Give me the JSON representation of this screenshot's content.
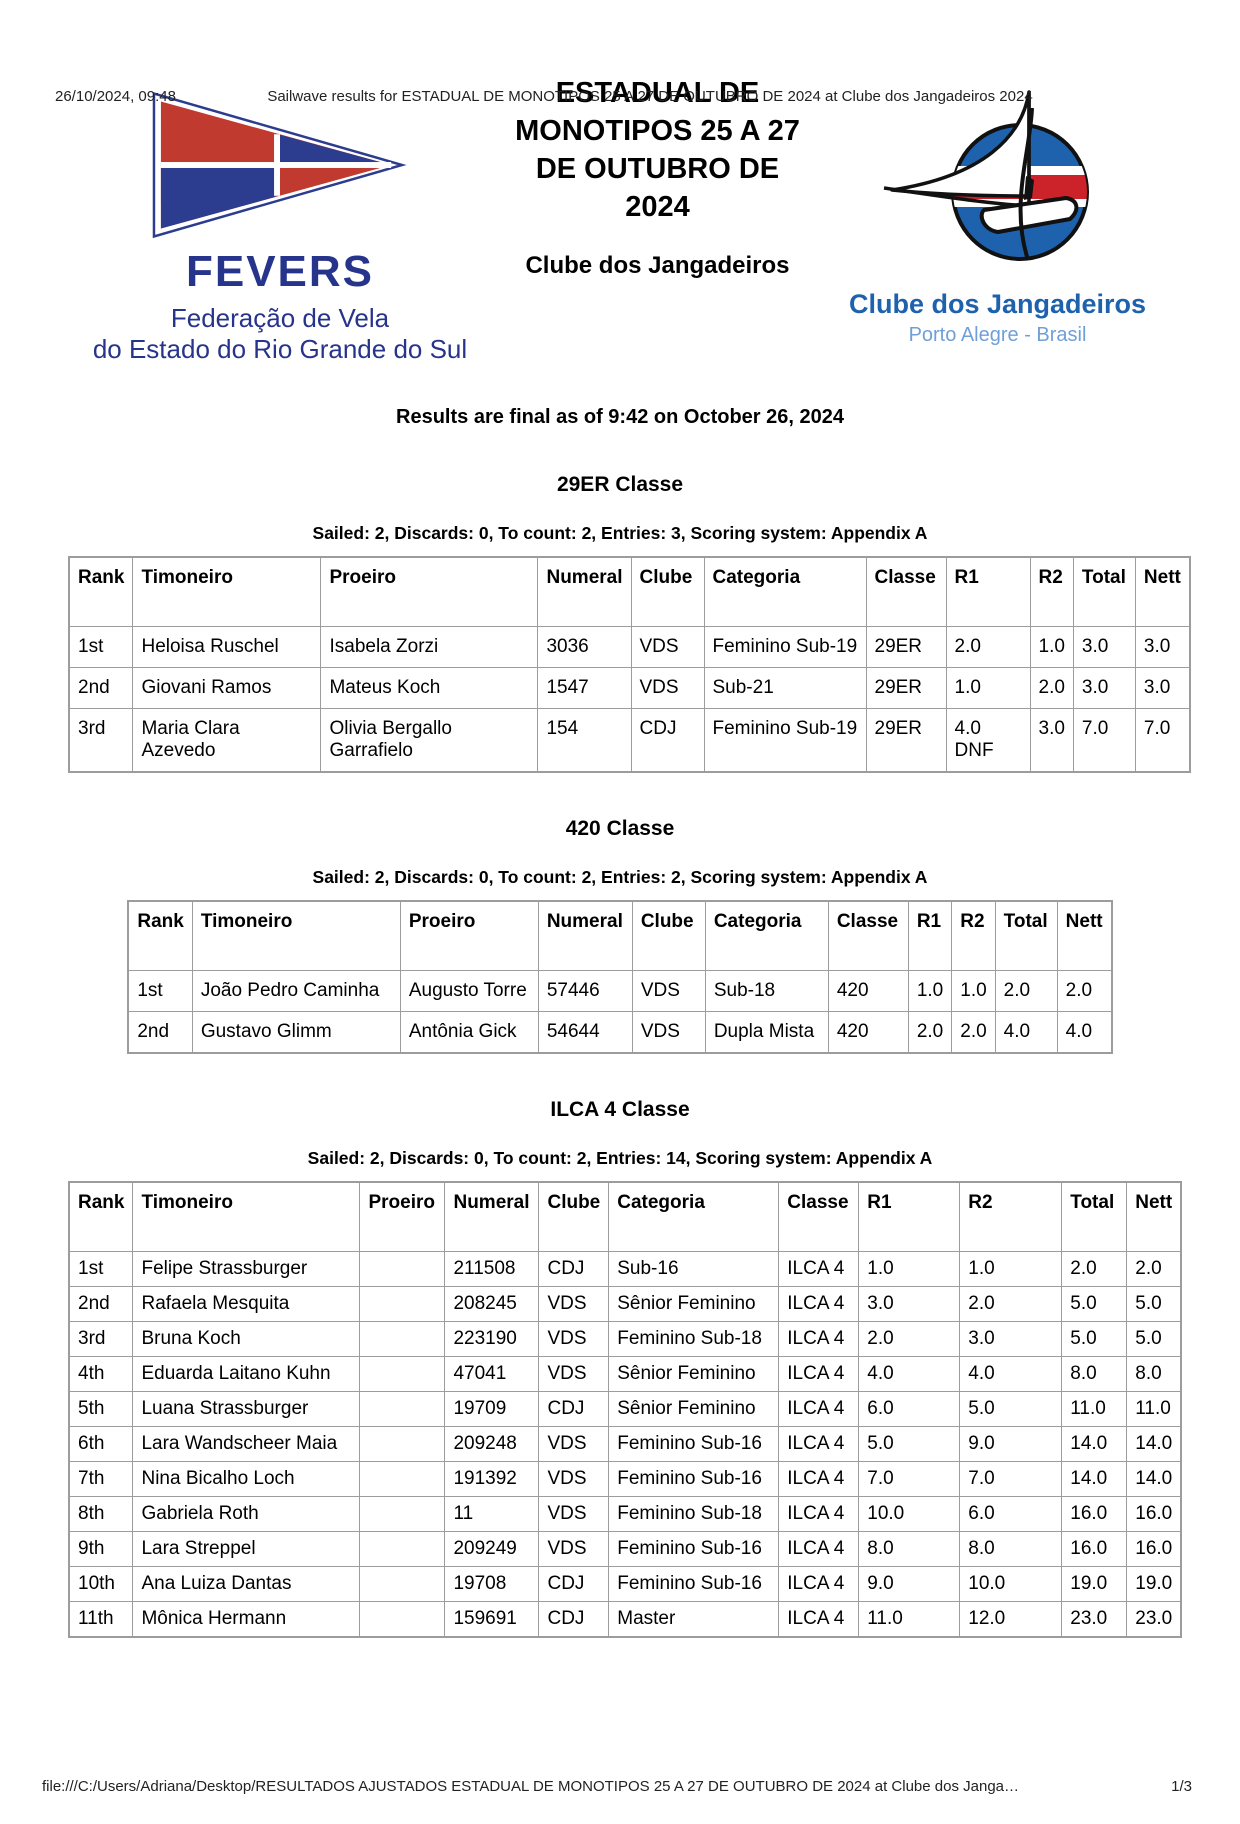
{
  "print_header": {
    "datetime": "26/10/2024, 09:48",
    "title": "Sailwave results for ESTADUAL DE MONOTIPOS 25 A 27 DE OUTUBRO DE 2024 at Clube dos Jangadeiros 2024"
  },
  "banner": {
    "fevers": {
      "flag_icon": "fevers-pennant-flag-icon",
      "name": "FEVERS",
      "subtitle_line1": "Federação de Vela",
      "subtitle_line2": "do Estado do Rio Grande do Sul",
      "colors": {
        "navy": "#27348b",
        "flag_red": "#c03a2f",
        "flag_blue": "#2c3c8f"
      }
    },
    "event_title": "ESTADUAL DE MONOTIPOS 25 A 27 DE OUTUBRO DE 2024",
    "event_venue": "Clube dos Jangadeiros",
    "cdj": {
      "logo_icon": "jangada-sailboat-icon",
      "name": "Clube dos Jangadeiros",
      "subtitle": "Porto Alegre - Brasil",
      "colors": {
        "blue": "#1e62ae",
        "light_blue": "#6f9fd8",
        "stripe_red": "#cc2229"
      }
    }
  },
  "results_note": "Results are final as of 9:42 on October 26, 2024",
  "sections": [
    {
      "title": "29ER Classe",
      "info": "Sailed: 2, Discards: 0, To count: 2, Entries: 3, Scoring system: Appendix A",
      "columns": [
        "Rank",
        "Timoneiro",
        "Proeiro",
        "Numeral",
        "Clube",
        "Categoria",
        "Classe",
        "R1",
        "R2",
        "Total",
        "Nett"
      ],
      "rows": [
        [
          "1st",
          "Heloisa Ruschel",
          "Isabela Zorzi",
          "3036",
          "VDS",
          "Feminino Sub-19",
          "29ER",
          "2.0",
          "1.0",
          "3.0",
          "3.0"
        ],
        [
          "2nd",
          "Giovani Ramos",
          "Mateus Koch",
          "1547",
          "VDS",
          "Sub-21",
          "29ER",
          "1.0",
          "2.0",
          "3.0",
          "3.0"
        ],
        [
          "3rd",
          "Maria Clara Azevedo",
          "Olivia Bergallo Garrafielo",
          "154",
          "CDJ",
          "Feminino Sub-19",
          "29ER",
          "4.0\nDNF",
          "3.0",
          "7.0",
          "7.0"
        ]
      ]
    },
    {
      "title": "420 Classe",
      "info": "Sailed: 2, Discards: 0, To count: 2, Entries: 2, Scoring system: Appendix A",
      "columns": [
        "Rank",
        "Timoneiro",
        "Proeiro",
        "Numeral",
        "Clube",
        "Categoria",
        "Classe",
        "R1",
        "R2",
        "Total",
        "Nett"
      ],
      "rows": [
        [
          "1st",
          "João Pedro Caminha",
          "Augusto Torre",
          "57446",
          "VDS",
          "Sub-18",
          "420",
          "1.0",
          "1.0",
          "2.0",
          "2.0"
        ],
        [
          "2nd",
          "Gustavo Glimm",
          "Antônia Gick",
          "54644",
          "VDS",
          "Dupla Mista",
          "420",
          "2.0",
          "2.0",
          "4.0",
          "4.0"
        ]
      ]
    },
    {
      "title": "ILCA 4 Classe",
      "info": "Sailed: 2, Discards: 0, To count: 2, Entries: 14, Scoring system: Appendix A",
      "columns": [
        "Rank",
        "Timoneiro",
        "Proeiro",
        "Numeral",
        "Clube",
        "Categoria",
        "Classe",
        "R1",
        "R2",
        "Total",
        "Nett"
      ],
      "rows": [
        [
          "1st",
          "Felipe Strassburger",
          "",
          "211508",
          "CDJ",
          "Sub-16",
          "ILCA 4",
          "1.0",
          "1.0",
          "2.0",
          "2.0"
        ],
        [
          "2nd",
          "Rafaela Mesquita",
          "",
          "208245",
          "VDS",
          "Sênior Feminino",
          "ILCA 4",
          "3.0",
          "2.0",
          "5.0",
          "5.0"
        ],
        [
          "3rd",
          "Bruna Koch",
          "",
          "223190",
          "VDS",
          "Feminino Sub-18",
          "ILCA 4",
          "2.0",
          "3.0",
          "5.0",
          "5.0"
        ],
        [
          "4th",
          "Eduarda Laitano Kuhn",
          "",
          "47041",
          "VDS",
          "Sênior Feminino",
          "ILCA 4",
          "4.0",
          "4.0",
          "8.0",
          "8.0"
        ],
        [
          "5th",
          "Luana Strassburger",
          "",
          "19709",
          "CDJ",
          "Sênior Feminino",
          "ILCA 4",
          "6.0",
          "5.0",
          "11.0",
          "11.0"
        ],
        [
          "6th",
          "Lara Wandscheer Maia",
          "",
          "209248",
          "VDS",
          "Feminino Sub-16",
          "ILCA 4",
          "5.0",
          "9.0",
          "14.0",
          "14.0"
        ],
        [
          "7th",
          "Nina Bicalho Loch",
          "",
          "191392",
          "VDS",
          "Feminino Sub-16",
          "ILCA 4",
          "7.0",
          "7.0",
          "14.0",
          "14.0"
        ],
        [
          "8th",
          "Gabriela Roth",
          "",
          "11",
          "VDS",
          "Feminino Sub-18",
          "ILCA 4",
          "10.0",
          "6.0",
          "16.0",
          "16.0"
        ],
        [
          "9th",
          "Lara Streppel",
          "",
          "209249",
          "VDS",
          "Feminino Sub-16",
          "ILCA 4",
          "8.0",
          "8.0",
          "16.0",
          "16.0"
        ],
        [
          "10th",
          "Ana Luiza Dantas",
          "",
          "19708",
          "CDJ",
          "Feminino Sub-16",
          "ILCA 4",
          "9.0",
          "10.0",
          "19.0",
          "19.0"
        ],
        [
          "11th",
          "Mônica Hermann",
          "",
          "159691",
          "CDJ",
          "Master",
          "ILCA 4",
          "11.0",
          "12.0",
          "23.0",
          "23.0"
        ]
      ]
    }
  ],
  "print_footer": {
    "path": "file:///C:/Users/Adriana/Desktop/RESULTADOS AJUSTADOS ESTADUAL DE MONOTIPOS 25 A 27 DE OUTUBRO DE 2024 at Clube dos Janga…",
    "page": "1/3"
  }
}
